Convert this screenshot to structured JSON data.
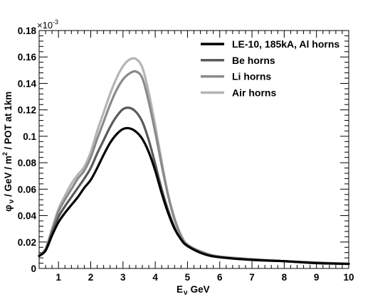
{
  "chart_data": {
    "type": "line",
    "xlim": [
      0.4,
      10
    ],
    "ylim": [
      0,
      0.18
    ],
    "y_exponent_label": "×10",
    "y_exponent_power": "-3",
    "xlabel": {
      "symbol": "E",
      "subscript": "ν",
      "unit": "GeV"
    },
    "ylabel": {
      "symbol": "φ",
      "subscript": "ν",
      "text_a": " / GeV / m",
      "sup": "2",
      "text_b": " / POT at 1km"
    },
    "x_ticks": [
      "1",
      "2",
      "3",
      "4",
      "5",
      "6",
      "7",
      "8",
      "9",
      "10"
    ],
    "y_ticks": [
      "0",
      "0.02",
      "0.04",
      "0.06",
      "0.08",
      "0.1",
      "0.12",
      "0.14",
      "0.16",
      "0.18"
    ],
    "legend_position": "top-right",
    "grid": false,
    "x": [
      0.4,
      0.6,
      0.8,
      1.0,
      1.2,
      1.4,
      1.6,
      1.8,
      2.0,
      2.2,
      2.4,
      2.6,
      2.8,
      3.0,
      3.2,
      3.4,
      3.6,
      3.8,
      4.0,
      4.2,
      4.4,
      4.6,
      4.8,
      5.0,
      5.5,
      6.0,
      7.0,
      8.0,
      9.0,
      10.0
    ],
    "series": [
      {
        "name": "LE-10, 185kA, Al horns",
        "color": "#000000",
        "values": [
          0.0095,
          0.0135,
          0.025,
          0.035,
          0.042,
          0.048,
          0.054,
          0.061,
          0.067,
          0.076,
          0.086,
          0.095,
          0.1015,
          0.1055,
          0.106,
          0.1035,
          0.098,
          0.088,
          0.074,
          0.057,
          0.042,
          0.03,
          0.022,
          0.017,
          0.011,
          0.0085,
          0.0065,
          0.0055,
          0.004,
          0.0035
        ]
      },
      {
        "name": "Be horns",
        "color": "#5a5a5a",
        "values": [
          0.0095,
          0.014,
          0.027,
          0.039,
          0.047,
          0.054,
          0.061,
          0.068,
          0.076,
          0.087,
          0.097,
          0.107,
          0.115,
          0.1205,
          0.1215,
          0.1185,
          0.111,
          0.097,
          0.079,
          0.06,
          0.044,
          0.031,
          0.022,
          0.017,
          0.011,
          0.0085,
          0.0065,
          0.0055,
          0.0042,
          0.0035
        ]
      },
      {
        "name": "Li horns",
        "color": "#8a8a8a",
        "values": [
          0.0095,
          0.0145,
          0.029,
          0.043,
          0.052,
          0.06,
          0.068,
          0.074,
          0.084,
          0.098,
          0.111,
          0.124,
          0.135,
          0.143,
          0.1475,
          0.149,
          0.144,
          0.126,
          0.103,
          0.078,
          0.055,
          0.037,
          0.025,
          0.018,
          0.012,
          0.009,
          0.007,
          0.0055,
          0.0045,
          0.0035
        ]
      },
      {
        "name": "Air horns",
        "color": "#b4b4b4",
        "values": [
          0.0095,
          0.015,
          0.03,
          0.045,
          0.055,
          0.064,
          0.071,
          0.077,
          0.088,
          0.104,
          0.118,
          0.132,
          0.144,
          0.153,
          0.158,
          0.1585,
          0.152,
          0.133,
          0.108,
          0.081,
          0.056,
          0.038,
          0.025,
          0.018,
          0.012,
          0.009,
          0.007,
          0.0055,
          0.0045,
          0.0035
        ]
      }
    ]
  }
}
